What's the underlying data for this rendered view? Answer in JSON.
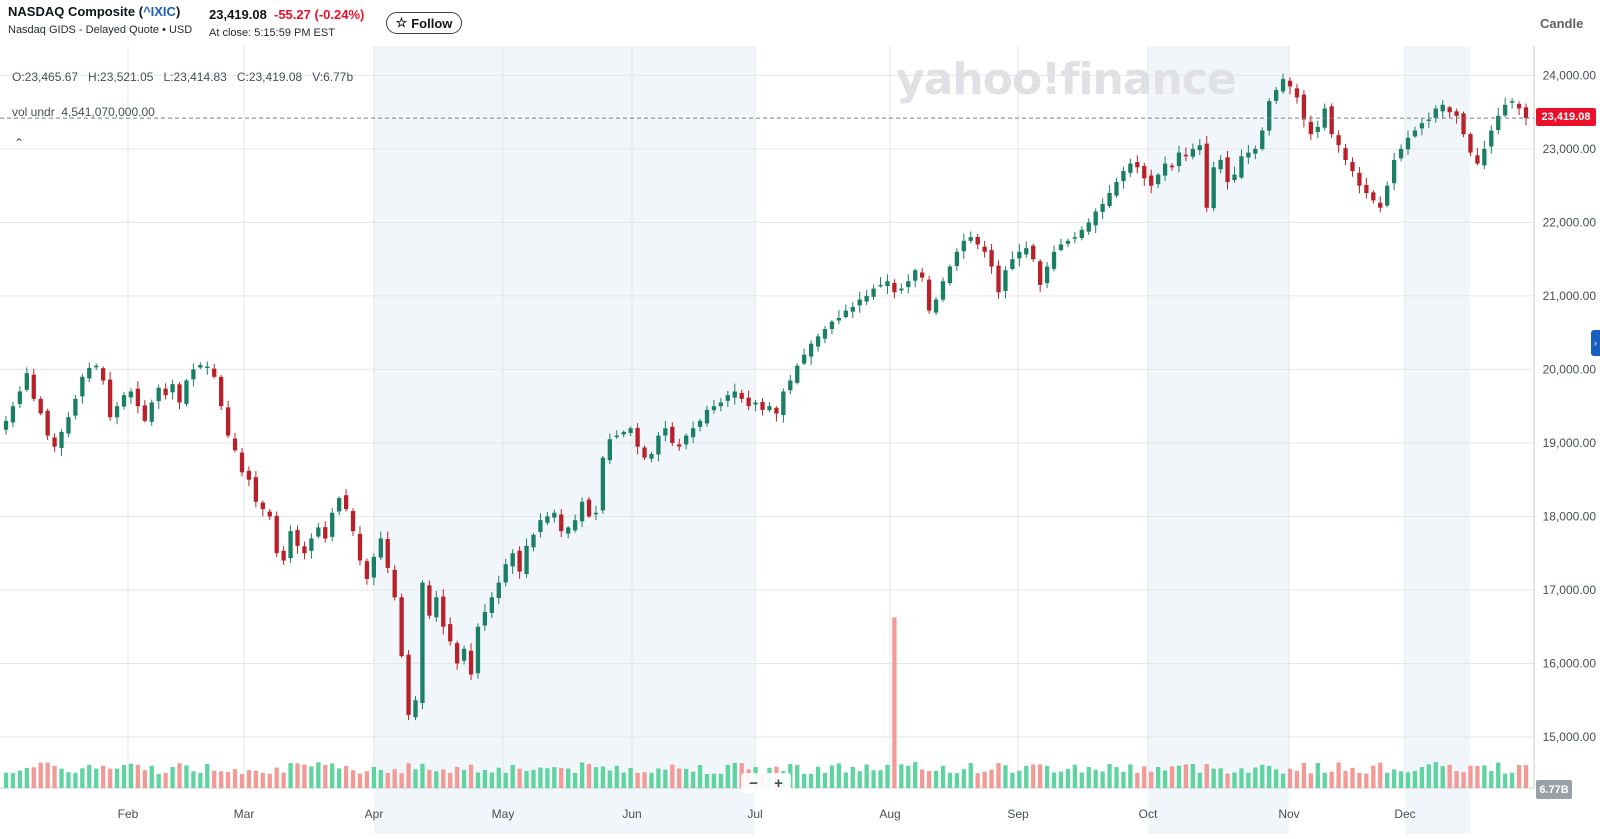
{
  "header": {
    "title_prefix": "NASDAQ Composite (",
    "symbol": "^IXIC",
    "title_suffix": ")",
    "exchange_info": "Nasdaq GIDS - Delayed Quote • USD",
    "price": "23,419.08",
    "change": "-55.27",
    "change_pct": "(-0.24%)",
    "close_time": "At close: 5:15:59 PM EST",
    "follow_label": "Follow",
    "chart_type_label": "Candle"
  },
  "legend": {
    "ohlc": "O:23,465.67   H:23,521.05   L:23,414.83   C:23,419.08   V:6.77b",
    "vol_undr_label": "vol undr",
    "vol_undr_value": "4,541,070,000.00",
    "collapse_icon": "chevron-up-icon"
  },
  "watermark": "yahoo!finance",
  "last_price_tag": "23,419.08",
  "volume_tag": "6.77B",
  "zoom": {
    "minus": "−",
    "plus": "+"
  },
  "colors": {
    "up": "#1a7f64",
    "down": "#b82129",
    "up_vol": "#5fd3a0",
    "down_vol": "#f29a96",
    "accent": "#eb0f29",
    "brand_blue": "#1a5fbf"
  },
  "chart_data": {
    "type": "candlestick",
    "y_ticks": [
      "24,000.00",
      "23,000.00",
      "22,000.00",
      "21,000.00",
      "20,000.00",
      "19,000.00",
      "18,000.00",
      "17,000.00",
      "16,000.00",
      "15,000.00"
    ],
    "ylim": [
      14850,
      24400
    ],
    "x_ticks": [
      "Feb",
      "Mar",
      "Apr",
      "May",
      "Jun",
      "Jul",
      "Aug",
      "Sep",
      "Oct",
      "Nov",
      "Dec"
    ],
    "shaded_months": [
      "Apr",
      "May",
      "Jun",
      "Oct",
      "Dec"
    ],
    "last_close": 23419.08,
    "close_series": [
      19300,
      19500,
      19700,
      19950,
      19600,
      19400,
      19100,
      18950,
      19150,
      19350,
      19600,
      19900,
      20020,
      20050,
      19850,
      19350,
      19500,
      19650,
      19700,
      19500,
      19300,
      19550,
      19750,
      19650,
      19800,
      19550,
      19850,
      20000,
      20060,
      20040,
      19900,
      19500,
      19100,
      18900,
      18600,
      18500,
      18200,
      18100,
      18000,
      17500,
      17400,
      17800,
      17600,
      17500,
      17700,
      17850,
      17700,
      18050,
      18250,
      18100,
      17800,
      17400,
      17150,
      17450,
      17700,
      17300,
      16900,
      16100,
      15300,
      15500,
      17100,
      16650,
      16900,
      16500,
      16300,
      16000,
      16200,
      15850,
      16500,
      16700,
      16900,
      17100,
      17350,
      17500,
      17250,
      17600,
      17750,
      17950,
      18000,
      18050,
      17800,
      17850,
      17950,
      18200,
      18000,
      18050,
      18800,
      19050,
      19100,
      19150,
      19200,
      18950,
      18800,
      18850,
      19100,
      19200,
      19000,
      18950,
      19100,
      19200,
      19300,
      19450,
      19500,
      19550,
      19650,
      19700,
      19600,
      19500,
      19550,
      19450,
      19500,
      19400,
      19700,
      19850,
      20050,
      20200,
      20350,
      20450,
      20550,
      20650,
      20700,
      20800,
      20850,
      20950,
      21000,
      21100,
      21150,
      21200,
      21050,
      21100,
      21200,
      21350,
      21250,
      20800,
      20950,
      21200,
      21400,
      21600,
      21750,
      21800,
      21700,
      21600,
      21400,
      21050,
      21350,
      21500,
      21600,
      21650,
      21500,
      21150,
      21400,
      21600,
      21700,
      21750,
      21800,
      21900,
      22000,
      22150,
      22250,
      22400,
      22550,
      22700,
      22800,
      22750,
      22600,
      22500,
      22650,
      22800,
      22750,
      22950,
      22900,
      23000,
      23050,
      22200,
      22750,
      22850,
      22550,
      22650,
      22900,
      22950,
      23000,
      23250,
      23650,
      23800,
      23950,
      23850,
      23700,
      23400,
      23200,
      23300,
      23550,
      23200,
      23050,
      22850,
      22700,
      22500,
      22400,
      22300,
      22200,
      22500,
      22850,
      23000,
      23150,
      23250,
      23350,
      23400,
      23550,
      23600,
      23500,
      23450,
      23200,
      22950,
      22800,
      23000,
      23250,
      23450,
      23600,
      23650,
      23550,
      23419.08
    ]
  }
}
